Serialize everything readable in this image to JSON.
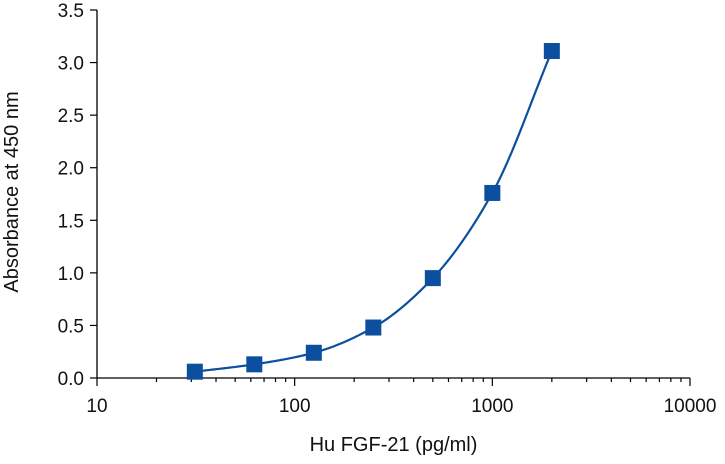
{
  "chart_data": {
    "type": "scatter",
    "title": "",
    "xlabel": "Hu FGF-21 (pg/ml)",
    "ylabel": "Absorbance at 450 nm",
    "x_scale": "log",
    "xlim": [
      10,
      10000
    ],
    "ylim": [
      0,
      3.5
    ],
    "x_ticks": [
      10,
      100,
      1000,
      10000
    ],
    "x_tick_labels": [
      "10",
      "100",
      "1000",
      "10000"
    ],
    "y_ticks": [
      0,
      0.5,
      1,
      1.5,
      2,
      2.5,
      3,
      3.5
    ],
    "y_tick_labels": [
      "0.0",
      "0.5",
      "1.0",
      "1.5",
      "2.0",
      "2.5",
      "3.0",
      "3.5"
    ],
    "grid": false,
    "legend": "none",
    "series": [
      {
        "marker": "square",
        "color": "#0b4f9e",
        "fit_curve": true,
        "x": [
          31.25,
          62.5,
          125,
          250,
          500,
          1000,
          2000
        ],
        "y": [
          0.06,
          0.13,
          0.24,
          0.48,
          0.95,
          1.76,
          3.11
        ]
      }
    ]
  }
}
